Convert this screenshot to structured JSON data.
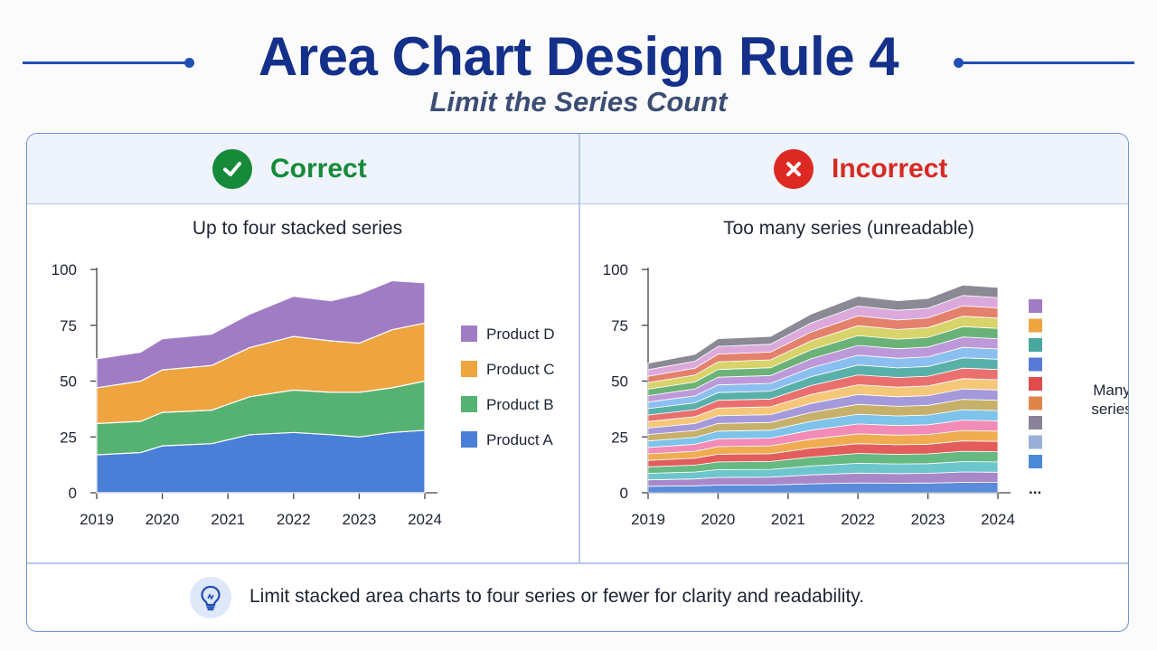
{
  "header": {
    "title": "Area Chart Design Rule 4",
    "subtitle": "Limit the Series Count"
  },
  "colors": {
    "accent": "#1f4fb5",
    "correct": "#178a3a",
    "incorrect": "#dc2a23"
  },
  "panels": {
    "correct": {
      "label": "Correct",
      "icon": "check-icon"
    },
    "incorrect": {
      "label": "Incorrect",
      "icon": "x-icon"
    }
  },
  "chart_data": [
    {
      "type": "area",
      "stacked": true,
      "title": "Up to four stacked series",
      "x": [
        2019,
        2019.67,
        2020,
        2020.75,
        2021.33,
        2022,
        2022.57,
        2023,
        2023.5,
        2024
      ],
      "x_ticks": [
        "2019",
        "2020",
        "2021",
        "2022",
        "2023",
        "2024"
      ],
      "y_ticks": [
        "0",
        "25",
        "50",
        "75",
        "100"
      ],
      "ylim": [
        0,
        100
      ],
      "legend_position": "right",
      "series": [
        {
          "name": "Product A",
          "color": "#4a7fd8",
          "values": [
            17,
            18,
            21,
            22,
            26,
            27,
            26,
            25,
            27,
            28
          ]
        },
        {
          "name": "Product B",
          "color": "#56b273",
          "values": [
            14,
            14,
            15,
            15,
            17,
            19,
            19,
            20,
            20,
            22
          ]
        },
        {
          "name": "Product C",
          "color": "#eea43f",
          "values": [
            16,
            18,
            19,
            20,
            22,
            24,
            23,
            22,
            26,
            26
          ]
        },
        {
          "name": "Product D",
          "color": "#a07cc5",
          "values": [
            13,
            13,
            14,
            14,
            15,
            18,
            18,
            22,
            22,
            18
          ]
        }
      ]
    },
    {
      "type": "area",
      "stacked": true,
      "title": "Too many series (unreadable)",
      "x": [
        2019,
        2019.67,
        2020,
        2020.75,
        2021.33,
        2022,
        2022.57,
        2023,
        2023.5,
        2024
      ],
      "x_ticks": [
        "2019",
        "2020",
        "2021",
        "2022",
        "2023",
        "2024"
      ],
      "y_ticks": [
        "0",
        "25",
        "50",
        "75",
        "100"
      ],
      "ylim": [
        0,
        100
      ],
      "legend_position": "right",
      "legend_label": "Many series",
      "legend_more": "...",
      "totals": [
        58,
        62,
        69,
        70,
        80,
        88,
        86,
        87,
        93,
        92
      ],
      "band_colors": [
        "#4a7fd8",
        "#a07cc5",
        "#5fc0c8",
        "#56b273",
        "#e04c4c",
        "#eea43f",
        "#f27fb0",
        "#6fbde8",
        "#c2a85a",
        "#9b8ed6",
        "#f5c26b",
        "#e86060",
        "#48a8a0",
        "#7fb9ee",
        "#b78ed6",
        "#5aaa6a",
        "#d4cf5a",
        "#e0745e",
        "#d8a0d8",
        "#7e7e8a"
      ],
      "legend_swatches": [
        "#a07cc5",
        "#eea43f",
        "#48a8a0",
        "#5a7ad8",
        "#e04c4c",
        "#e0854a",
        "#8a8296",
        "#9ab0d8",
        "#4a8ad8"
      ]
    }
  ],
  "footer": {
    "tip": "Limit stacked area charts to four series or fewer for clarity and readability.",
    "icon": "lightbulb-icon"
  }
}
